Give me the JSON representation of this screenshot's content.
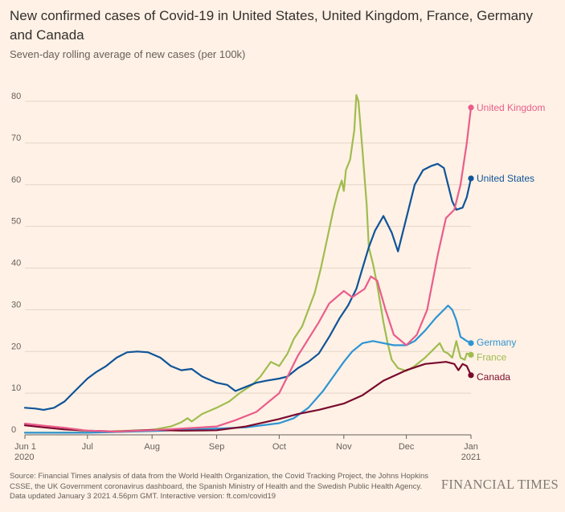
{
  "header": {
    "title": "New confirmed cases of Covid-19 in United States, United Kingdom, France, Germany and Canada",
    "subtitle": "Seven-day rolling average of new cases (per 100k)"
  },
  "footer": {
    "source_line1": "Source: Financial Times analysis of data from the World Health Organization, the Covid Tracking Project, the Johns Hopkins",
    "source_line2": "CSSE, the UK Government coronavirus dashboard, the Spanish Ministry of Health and the Swedish Public Health Agency.",
    "source_line3": "Data updated January 3 2021 4.56pm GMT. Interactive version: ft.com/covid19",
    "brand": "FINANCIAL TIMES"
  },
  "chart_data": {
    "type": "line",
    "title": "New confirmed cases of Covid-19 in United States, United Kingdom, France, Germany and Canada",
    "subtitle": "Seven-day rolling average of new cases (per 100k)",
    "x_axis": {
      "type": "date",
      "range": [
        "2020-06-01",
        "2021-01-01"
      ],
      "ticks": [
        {
          "date": "2020-06-01",
          "label": "Jun 1",
          "sublabel": "2020"
        },
        {
          "date": "2020-07-01",
          "label": "Jul",
          "sublabel": ""
        },
        {
          "date": "2020-08-01",
          "label": "Aug",
          "sublabel": ""
        },
        {
          "date": "2020-09-01",
          "label": "Sep",
          "sublabel": ""
        },
        {
          "date": "2020-10-01",
          "label": "Oct",
          "sublabel": ""
        },
        {
          "date": "2020-11-01",
          "label": "Nov",
          "sublabel": ""
        },
        {
          "date": "2020-12-01",
          "label": "Dec",
          "sublabel": ""
        },
        {
          "date": "2021-01-01",
          "label": "Jan",
          "sublabel": "2021"
        }
      ]
    },
    "y_axis": {
      "range": [
        0,
        80
      ],
      "ticks": [
        0,
        10,
        20,
        30,
        40,
        50,
        60,
        70,
        80
      ]
    },
    "grid": true,
    "legend": "direct labels at line ends",
    "series": [
      {
        "name": "France",
        "color": "#a0bc4f",
        "points": [
          [
            "2020-06-01",
            0.5
          ],
          [
            "2020-06-15",
            0.5
          ],
          [
            "2020-07-01",
            0.6
          ],
          [
            "2020-07-15",
            0.9
          ],
          [
            "2020-08-01",
            1.2
          ],
          [
            "2020-08-10",
            2.0
          ],
          [
            "2020-08-15",
            3.0
          ],
          [
            "2020-08-18",
            4.0
          ],
          [
            "2020-08-20",
            3.2
          ],
          [
            "2020-08-25",
            5.0
          ],
          [
            "2020-09-01",
            6.5
          ],
          [
            "2020-09-07",
            8.0
          ],
          [
            "2020-09-12",
            10.0
          ],
          [
            "2020-09-18",
            12.0
          ],
          [
            "2020-09-22",
            14.0
          ],
          [
            "2020-09-27",
            17.5
          ],
          [
            "2020-10-01",
            16.5
          ],
          [
            "2020-10-05",
            19.5
          ],
          [
            "2020-10-08",
            23.0
          ],
          [
            "2020-10-12",
            26.0
          ],
          [
            "2020-10-15",
            30.0
          ],
          [
            "2020-10-18",
            34.0
          ],
          [
            "2020-10-21",
            40.0
          ],
          [
            "2020-10-24",
            47.0
          ],
          [
            "2020-10-27",
            54.0
          ],
          [
            "2020-10-29",
            58.0
          ],
          [
            "2020-10-31",
            61.0
          ],
          [
            "2020-11-01",
            58.5
          ],
          [
            "2020-11-02",
            63.5
          ],
          [
            "2020-11-04",
            66.0
          ],
          [
            "2020-11-06",
            73.0
          ],
          [
            "2020-11-07",
            81.5
          ],
          [
            "2020-11-08",
            80.0
          ],
          [
            "2020-11-10",
            68.0
          ],
          [
            "2020-11-12",
            55.0
          ],
          [
            "2020-11-13",
            45.0
          ],
          [
            "2020-11-15",
            41.0
          ],
          [
            "2020-11-17",
            36.0
          ],
          [
            "2020-11-20",
            27.0
          ],
          [
            "2020-11-22",
            22.0
          ],
          [
            "2020-11-24",
            18.0
          ],
          [
            "2020-11-27",
            16.0
          ],
          [
            "2020-12-01",
            15.3
          ],
          [
            "2020-12-05",
            16.5
          ],
          [
            "2020-12-10",
            18.5
          ],
          [
            "2020-12-14",
            20.5
          ],
          [
            "2020-12-17",
            22.0
          ],
          [
            "2020-12-19",
            20.0
          ],
          [
            "2020-12-21",
            19.5
          ],
          [
            "2020-12-23",
            18.5
          ],
          [
            "2020-12-25",
            22.5
          ],
          [
            "2020-12-27",
            18.5
          ],
          [
            "2020-12-29",
            18.0
          ],
          [
            "2020-12-30",
            19.5
          ],
          [
            "2021-01-01",
            19.2
          ]
        ],
        "end_label": "France"
      },
      {
        "name": "Germany",
        "color": "#2e94d3",
        "points": [
          [
            "2020-06-01",
            0.5
          ],
          [
            "2020-07-01",
            0.5
          ],
          [
            "2020-08-01",
            0.9
          ],
          [
            "2020-09-01",
            1.5
          ],
          [
            "2020-09-15",
            1.8
          ],
          [
            "2020-10-01",
            2.8
          ],
          [
            "2020-10-08",
            4.0
          ],
          [
            "2020-10-15",
            6.5
          ],
          [
            "2020-10-22",
            10.5
          ],
          [
            "2020-10-27",
            14.0
          ],
          [
            "2020-11-01",
            17.5
          ],
          [
            "2020-11-05",
            20.0
          ],
          [
            "2020-11-10",
            22.0
          ],
          [
            "2020-11-15",
            22.5
          ],
          [
            "2020-11-20",
            22.0
          ],
          [
            "2020-11-25",
            21.5
          ],
          [
            "2020-12-01",
            21.5
          ],
          [
            "2020-12-05",
            22.5
          ],
          [
            "2020-12-10",
            25.0
          ],
          [
            "2020-12-15",
            28.0
          ],
          [
            "2020-12-19",
            30.0
          ],
          [
            "2020-12-21",
            31.0
          ],
          [
            "2020-12-23",
            30.0
          ],
          [
            "2020-12-25",
            27.5
          ],
          [
            "2020-12-27",
            23.5
          ],
          [
            "2020-12-30",
            22.5
          ],
          [
            "2021-01-01",
            22.0
          ]
        ],
        "end_label": "Germany"
      },
      {
        "name": "Canada",
        "color": "#7a0a2d",
        "points": [
          [
            "2020-06-01",
            2.3
          ],
          [
            "2020-06-10",
            1.8
          ],
          [
            "2020-06-20",
            1.3
          ],
          [
            "2020-07-01",
            1.0
          ],
          [
            "2020-07-15",
            0.8
          ],
          [
            "2020-08-01",
            1.2
          ],
          [
            "2020-08-15",
            1.0
          ],
          [
            "2020-09-01",
            1.1
          ],
          [
            "2020-09-15",
            2.0
          ],
          [
            "2020-10-01",
            3.8
          ],
          [
            "2020-10-10",
            5.0
          ],
          [
            "2020-10-20",
            6.0
          ],
          [
            "2020-11-01",
            7.5
          ],
          [
            "2020-11-10",
            9.5
          ],
          [
            "2020-11-20",
            13.0
          ],
          [
            "2020-12-01",
            15.5
          ],
          [
            "2020-12-10",
            17.0
          ],
          [
            "2020-12-20",
            17.5
          ],
          [
            "2020-12-24",
            17.0
          ],
          [
            "2020-12-26",
            15.5
          ],
          [
            "2020-12-28",
            17.0
          ],
          [
            "2020-12-30",
            16.5
          ],
          [
            "2021-01-01",
            14.3
          ]
        ],
        "end_label": "Canada"
      },
      {
        "name": "United States",
        "color": "#0f5499",
        "points": [
          [
            "2020-06-01",
            6.5
          ],
          [
            "2020-06-06",
            6.3
          ],
          [
            "2020-06-10",
            6.0
          ],
          [
            "2020-06-15",
            6.5
          ],
          [
            "2020-06-20",
            8.0
          ],
          [
            "2020-06-25",
            10.5
          ],
          [
            "2020-07-01",
            13.5
          ],
          [
            "2020-07-05",
            15.0
          ],
          [
            "2020-07-10",
            16.5
          ],
          [
            "2020-07-15",
            18.5
          ],
          [
            "2020-07-20",
            19.8
          ],
          [
            "2020-07-25",
            20.0
          ],
          [
            "2020-07-30",
            19.8
          ],
          [
            "2020-08-05",
            18.5
          ],
          [
            "2020-08-10",
            16.5
          ],
          [
            "2020-08-15",
            15.5
          ],
          [
            "2020-08-20",
            15.8
          ],
          [
            "2020-08-25",
            14.0
          ],
          [
            "2020-09-01",
            12.5
          ],
          [
            "2020-09-06",
            12.0
          ],
          [
            "2020-09-10",
            10.5
          ],
          [
            "2020-09-15",
            11.5
          ],
          [
            "2020-09-20",
            12.5
          ],
          [
            "2020-09-25",
            13.0
          ],
          [
            "2020-10-01",
            13.5
          ],
          [
            "2020-10-05",
            14.0
          ],
          [
            "2020-10-10",
            16.0
          ],
          [
            "2020-10-15",
            17.5
          ],
          [
            "2020-10-20",
            19.5
          ],
          [
            "2020-10-25",
            23.5
          ],
          [
            "2020-10-30",
            28.0
          ],
          [
            "2020-11-03",
            31.0
          ],
          [
            "2020-11-07",
            35.0
          ],
          [
            "2020-11-10",
            40.0
          ],
          [
            "2020-11-13",
            45.0
          ],
          [
            "2020-11-16",
            49.0
          ],
          [
            "2020-11-20",
            52.5
          ],
          [
            "2020-11-24",
            48.5
          ],
          [
            "2020-11-27",
            44.0
          ],
          [
            "2020-12-01",
            52.0
          ],
          [
            "2020-12-05",
            60.0
          ],
          [
            "2020-12-09",
            63.5
          ],
          [
            "2020-12-13",
            64.5
          ],
          [
            "2020-12-16",
            65.0
          ],
          [
            "2020-12-19",
            64.0
          ],
          [
            "2020-12-21",
            60.0
          ],
          [
            "2020-12-23",
            56.0
          ],
          [
            "2020-12-25",
            54.0
          ],
          [
            "2020-12-28",
            54.5
          ],
          [
            "2020-12-30",
            57.0
          ],
          [
            "2021-01-01",
            61.5
          ]
        ],
        "end_label": "United States"
      },
      {
        "name": "United Kingdom",
        "color": "#e95d8c",
        "points": [
          [
            "2020-06-01",
            2.7
          ],
          [
            "2020-06-10",
            2.2
          ],
          [
            "2020-06-20",
            1.7
          ],
          [
            "2020-07-01",
            1.0
          ],
          [
            "2020-07-15",
            0.8
          ],
          [
            "2020-08-01",
            1.1
          ],
          [
            "2020-08-15",
            1.5
          ],
          [
            "2020-09-01",
            2.0
          ],
          [
            "2020-09-10",
            3.5
          ],
          [
            "2020-09-20",
            5.5
          ],
          [
            "2020-10-01",
            10.0
          ],
          [
            "2020-10-05",
            14.0
          ],
          [
            "2020-10-10",
            19.0
          ],
          [
            "2020-10-15",
            23.0
          ],
          [
            "2020-10-20",
            27.0
          ],
          [
            "2020-10-25",
            31.5
          ],
          [
            "2020-11-01",
            34.5
          ],
          [
            "2020-11-05",
            33.0
          ],
          [
            "2020-11-08",
            34.0
          ],
          [
            "2020-11-11",
            35.0
          ],
          [
            "2020-11-14",
            38.0
          ],
          [
            "2020-11-17",
            37.0
          ],
          [
            "2020-11-21",
            30.0
          ],
          [
            "2020-11-25",
            24.0
          ],
          [
            "2020-12-01",
            21.5
          ],
          [
            "2020-12-06",
            24.0
          ],
          [
            "2020-12-11",
            30.0
          ],
          [
            "2020-12-16",
            43.0
          ],
          [
            "2020-12-20",
            52.0
          ],
          [
            "2020-12-24",
            54.0
          ],
          [
            "2020-12-27",
            60.0
          ],
          [
            "2020-12-30",
            70.0
          ],
          [
            "2021-01-01",
            78.5
          ]
        ],
        "end_label": "United Kingdom"
      }
    ]
  }
}
